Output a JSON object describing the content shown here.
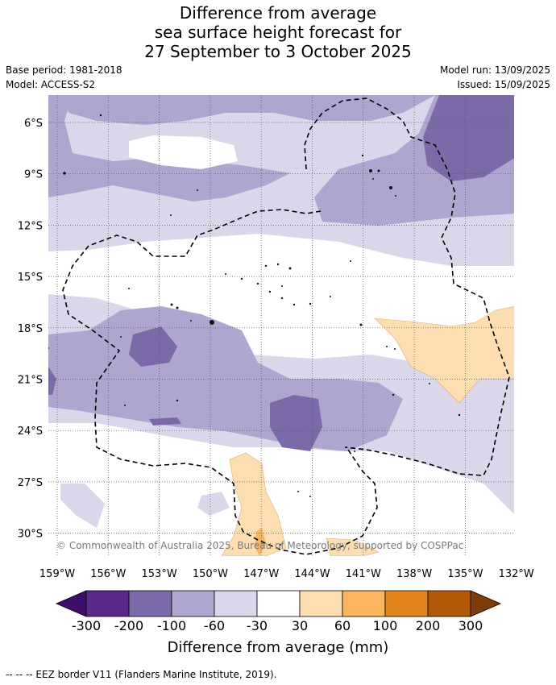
{
  "title": {
    "line1": "Difference from average",
    "line2": "sea surface height forecast for",
    "line3": "27 September to 3 October 2025"
  },
  "meta": {
    "base_period": "Base period: 1981-2018",
    "model": "Model: ACCESS-S2",
    "model_run": "Model run: 13/09/2025",
    "issued": "Issued: 15/09/2025"
  },
  "map": {
    "lat_ticks": [
      "6°S",
      "9°S",
      "12°S",
      "15°S",
      "18°S",
      "21°S",
      "24°S",
      "27°S",
      "30°S"
    ],
    "lon_ticks": [
      "159°W",
      "156°W",
      "153°W",
      "150°W",
      "147°W",
      "144°W",
      "141°W",
      "138°W",
      "135°W",
      "132°W"
    ],
    "copyright": "© Commonwealth of Australia 2025, Bureau of Meteorology, supported by COSPPac",
    "gridlines": true
  },
  "colorbar": {
    "labels": [
      "-300",
      "-200",
      "-100",
      "-60",
      "-30",
      "30",
      "60",
      "100",
      "200",
      "300"
    ],
    "colors": [
      "#3f0d6b",
      "#5a2a8a",
      "#7c6aa8",
      "#aea6cf",
      "#d9d8ea",
      "#ffffff",
      "#fddeb1",
      "#fbb55e",
      "#e3851a",
      "#b35806",
      "#7f3b08"
    ],
    "title": "Difference from average (mm)"
  },
  "footer": {
    "text": "--  --  -- EEZ border V11 (Flanders Marine Institute, 2019)."
  }
}
